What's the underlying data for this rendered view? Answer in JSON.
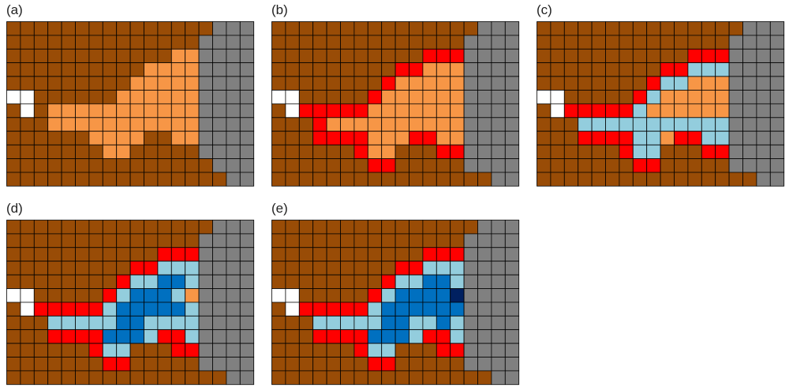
{
  "panels": [
    {
      "label": "(a)",
      "rows": [
        "BBBBBBBBBBBBBBBGGG",
        "BBBBBBBBBBBBBBGGGG",
        "BBBBBBBBBBBBOOGGGG",
        "BBBBBBBBBBOOOOGGGG",
        "BBBBBBBBBOOOOOGGGG",
        "WWBBBBBBOOOOOOGGGG",
        "BWBOOOOOOOOOOOGGGG",
        "BBBOOOOOOOOOOOGGGG",
        "BBBBBBOOOOBBOOGGGG",
        "BBBBBBBOOBBBBBGGGG",
        "BBBBBBBBBBBBBBBGGG",
        "BBBBBBBBBBBBBBBBGG"
      ]
    },
    {
      "label": "(b)",
      "rows": [
        "BBBBBBBBBBBBBBBGGG",
        "BBBBBBBBBBBBBBGGGG",
        "BBBBBBBBBBBRRRGGGG",
        "BBBBBBBBBRROOOGGGG",
        "BBBBBBBBROOOOOGGGG",
        "WWBBBBBROOOOOOGGGG",
        "BWRRRRROOOOOOOGGGG",
        "BBBROOOOOOOOOOGGGG",
        "BBBRRRROOORROOGGGG",
        "BBBBBBROOBBBRRGGGG",
        "BBBBBBBRRBBBBBGGGG",
        "BBBBBBBBBBBBBBBBGG"
      ]
    },
    {
      "label": "(c)",
      "rows": [
        "BBBBBBBBBBBBBBBGGG",
        "BBBBBBBBBBBBBBGGGG",
        "BBBBBBBBBBBRRRGGGG",
        "BBBBBBBBBRRLLLGGGG",
        "BBBBBBBBRLLOOOGGGG",
        "WWBBBBBRLOOOOOGGGG",
        "BWRRRRRLOOOOOOGGGG",
        "BBBLLLLLLLLLLLGGGG",
        "BBBRRRRLLORRLLGGGG",
        "BBBBBBRLLBBBRRGGGG",
        "BBBBBBBRRBBBBBGGGG",
        "BBBBBBBBBBBBBBBBGG"
      ]
    },
    {
      "label": "(d)",
      "rows": [
        "BBBBBBBBBBBBBBBGGG",
        "BBBBBBBBBBBBBBGGGG",
        "BBBBBBBBBBBRRRGGGG",
        "BBBBBBBBBRRLLLGGGG",
        "BBBBBBBBRLLMMLGGGG",
        "WWBBBBBRLMMMLOGGGG",
        "BWRRRRRLMMMMMLGGGG",
        "BBBLLLLLMMLLLLGGGG",
        "BBBRRRRMMMLRRLGGGG",
        "BBBBBBRLLBBBRRGGGG",
        "BBBBBBBRRBBBBBGGGG",
        "BBBBBBBBBBBBBBBBGG"
      ]
    },
    {
      "label": "(e)",
      "rows": [
        "BBBBBBBBBBBBBBBGGG",
        "BBBBBBBBBBBBBBGGGG",
        "BBBBBBBBBBBRRRGGGG",
        "BBBBBBBBBRRLLLGGGG",
        "BBBBBBBBRLLMMLGGGG",
        "WWBBBBBRLMMMMNGGGG",
        "BWRRRRRLMMMMMMGGGG",
        "BBBLLLLLMMLLMLGGGG",
        "BBBRRRRMMMLRRLGGGG",
        "BBBBBBRLLBBBRRGGGG",
        "BBBBBBBRRBBBBBGGGG",
        "BBBBBBBBBBBBBBBBGG"
      ]
    }
  ],
  "palette": {
    "B": "#994c06",
    "G": "#808080",
    "W": "#ffffff",
    "O": "#f79646",
    "R": "#ff0000",
    "L": "#93cddd",
    "M": "#0070c0",
    "N": "#002060"
  },
  "grid_line_color": "#000000"
}
